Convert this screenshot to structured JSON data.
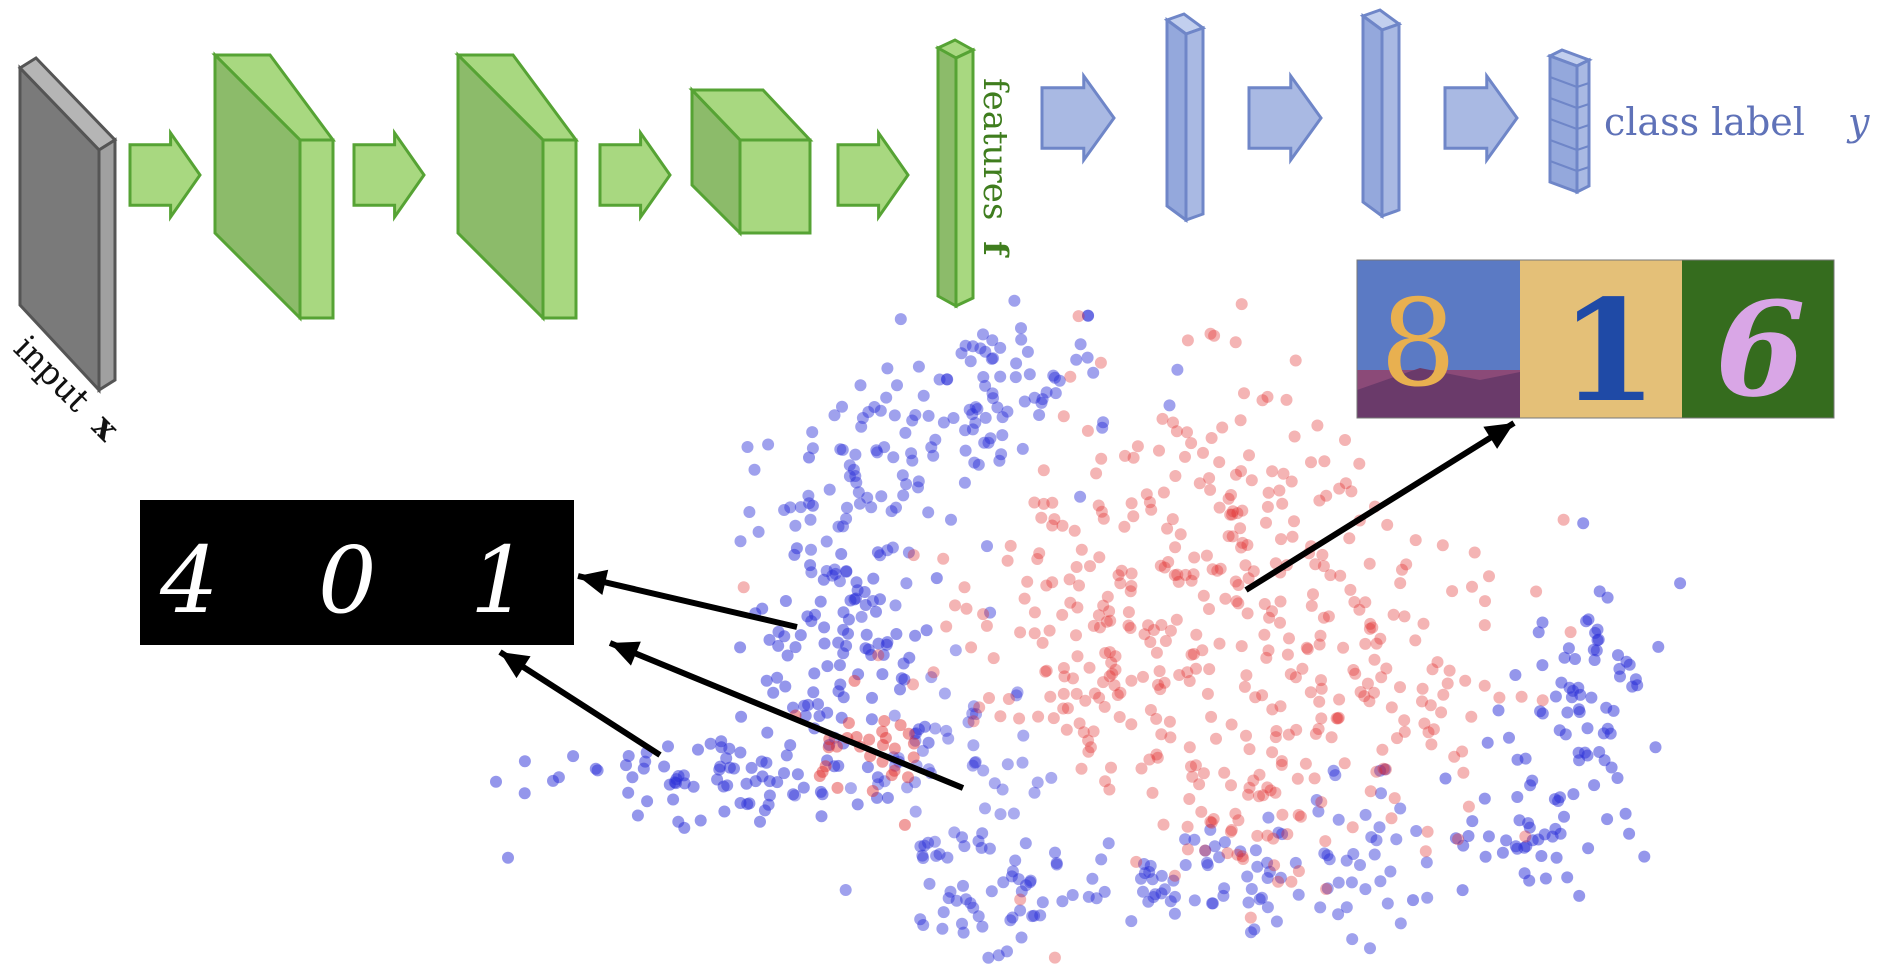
{
  "labels": {
    "input": "input",
    "input_symbol": "x",
    "features": "features",
    "features_symbol": "f",
    "class_label": "class label",
    "class_symbol": "y"
  },
  "source_digits": [
    "4",
    "0",
    "1"
  ],
  "target_digits": [
    "8",
    "1",
    "6"
  ],
  "colors": {
    "input_layer": "#8a8a8a",
    "feature_extractor": "#a8d880",
    "feature_extractor_dark": "#8cbb6a",
    "feature_extractor_stroke": "#56a334",
    "label_predictor": "#a9b9e3",
    "label_predictor_stroke": "#6f86c8",
    "source_domain_points": "#2a2ed8",
    "target_domain_points": "#e02828",
    "callout_arrows": "#000000"
  },
  "icons": {
    "input_layer": "slab",
    "feature_stages": "slabs-and-cube",
    "classifier_stages": "thin-columns",
    "output": "stacked-cells",
    "flow": "block-arrow",
    "callouts": "line-arrow"
  }
}
